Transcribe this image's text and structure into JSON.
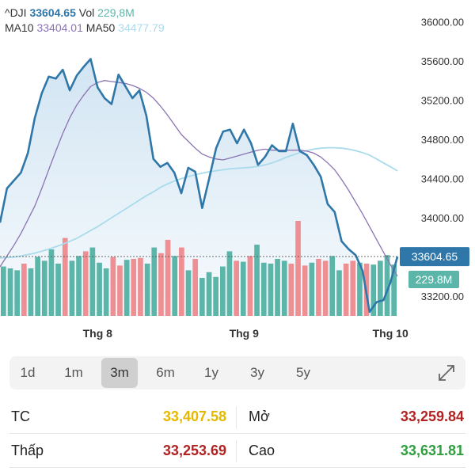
{
  "header": {
    "symbol": "^DJI",
    "price": "33604.65",
    "vol_label": "Vol",
    "vol_value": "229,8M",
    "ma10_label": "MA10",
    "ma10_value": "33404.01",
    "ma50_label": "MA50",
    "ma50_value": "34477.79"
  },
  "colors": {
    "price_line": "#2f77a8",
    "price_fill": "#cfe3f2",
    "ma10": "#8b73b3",
    "ma50": "#a9dbec",
    "vol_up": "#5bb5a8",
    "vol_down": "#ee8f94",
    "header_price": "#2f77a8",
    "header_vol": "#5bb5a8",
    "header_ma10": "#8b73b3",
    "header_ma50": "#a9dbec",
    "tc": "#e6b800",
    "down": "#b22222",
    "up": "#2e9e3e"
  },
  "chart_data": {
    "type": "line",
    "y_ticks": [
      "36000.00",
      "35600.00",
      "35200.00",
      "34800.00",
      "34400.00",
      "34000.00",
      "33200.00"
    ],
    "y_tick_values": [
      36000,
      35600,
      35200,
      34800,
      34400,
      34000,
      33200
    ],
    "ylim": [
      32830,
      36060
    ],
    "x_ticks": [
      {
        "label": "Thg 8",
        "index": 14
      },
      {
        "label": "Thg 9",
        "index": 35
      },
      {
        "label": "Thg 10",
        "index": 56
      }
    ],
    "current_price_label": "33604.65",
    "current_price": 33604.65,
    "volume_label": "229.8M",
    "price": [
      33950,
      34300,
      34380,
      34460,
      34660,
      35020,
      35270,
      35440,
      35420,
      35510,
      35300,
      35450,
      35540,
      35620,
      35330,
      35220,
      35160,
      35460,
      35340,
      35220,
      35300,
      35040,
      34600,
      34520,
      34560,
      34460,
      34250,
      34510,
      34470,
      34100,
      34400,
      34710,
      34880,
      34900,
      34760,
      34900,
      34760,
      34540,
      34620,
      34740,
      34680,
      34680,
      34960,
      34680,
      34640,
      34540,
      34420,
      34140,
      34060,
      33760,
      33680,
      33620,
      33460,
      33040,
      33140,
      33160,
      33340,
      33604.65
    ],
    "ma10": [
      33500,
      33610,
      33720,
      33840,
      33980,
      34120,
      34300,
      34490,
      34680,
      34860,
      35020,
      35150,
      35250,
      35340,
      35380,
      35400,
      35390,
      35380,
      35370,
      35350,
      35320,
      35280,
      35220,
      35140,
      35050,
      34950,
      34850,
      34780,
      34710,
      34650,
      34620,
      34600,
      34590,
      34610,
      34630,
      34650,
      34670,
      34690,
      34700,
      34690,
      34690,
      34690,
      34690,
      34690,
      34680,
      34660,
      34620,
      34560,
      34490,
      34390,
      34280,
      34160,
      34040,
      33910,
      33780,
      33650,
      33520,
      33404.01
    ],
    "ma50": [
      33590,
      33595,
      33600,
      33610,
      33625,
      33640,
      33660,
      33680,
      33705,
      33730,
      33760,
      33790,
      33830,
      33870,
      33910,
      33955,
      34000,
      34045,
      34090,
      34135,
      34180,
      34225,
      34265,
      34310,
      34345,
      34375,
      34400,
      34420,
      34440,
      34455,
      34470,
      34480,
      34490,
      34500,
      34505,
      34510,
      34515,
      34525,
      34540,
      34560,
      34585,
      34615,
      34640,
      34665,
      34685,
      34700,
      34710,
      34715,
      34715,
      34710,
      34700,
      34685,
      34665,
      34640,
      34600,
      34560,
      34520,
      34477.79
    ],
    "volume": [
      0.52,
      0.5,
      0.48,
      0.55,
      0.5,
      0.62,
      0.58,
      0.7,
      0.55,
      0.82,
      0.58,
      0.63,
      0.68,
      0.72,
      0.56,
      0.5,
      0.62,
      0.53,
      0.59,
      0.6,
      0.61,
      0.55,
      0.72,
      0.66,
      0.8,
      0.63,
      0.72,
      0.48,
      0.6,
      0.4,
      0.46,
      0.41,
      0.52,
      0.68,
      0.58,
      0.57,
      0.63,
      0.75,
      0.56,
      0.55,
      0.6,
      0.58,
      0.55,
      1.0,
      0.53,
      0.56,
      0.6,
      0.58,
      0.63,
      0.48,
      0.55,
      0.58,
      0.56,
      0.55,
      0.54,
      0.58,
      0.64,
      0.54
    ],
    "volume_direction": [
      "up",
      "up",
      "up",
      "down",
      "up",
      "up",
      "up",
      "up",
      "up",
      "down",
      "up",
      "up",
      "down",
      "up",
      "up",
      "up",
      "down",
      "down",
      "up",
      "down",
      "down",
      "up",
      "up",
      "down",
      "down",
      "up",
      "down",
      "up",
      "down",
      "up",
      "up",
      "up",
      "up",
      "up",
      "down",
      "up",
      "down",
      "up",
      "up",
      "up",
      "up",
      "up",
      "down",
      "down",
      "down",
      "up",
      "down",
      "down",
      "up",
      "up",
      "down",
      "down",
      "up",
      "down",
      "up",
      "up",
      "up",
      "up"
    ]
  },
  "range_tabs": [
    {
      "label": "1d"
    },
    {
      "label": "1m"
    },
    {
      "label": "3m",
      "active": true
    },
    {
      "label": "6m"
    },
    {
      "label": "1y"
    },
    {
      "label": "3y"
    },
    {
      "label": "5y"
    }
  ],
  "stats": {
    "tc_label": "TC",
    "tc_value": "33,407.58",
    "mo_label": "Mở",
    "mo_value": "33,259.84",
    "thap_label": "Thấp",
    "thap_value": "33,253.69",
    "cao_label": "Cao",
    "cao_value": "33,631.81"
  },
  "icons": {
    "expand": "expand-arrows-icon"
  }
}
